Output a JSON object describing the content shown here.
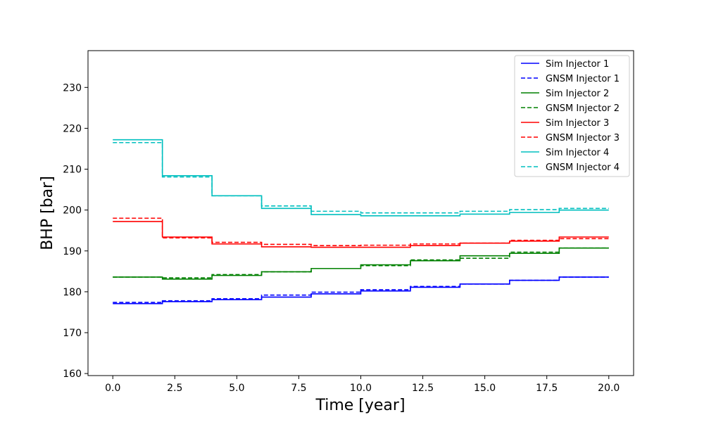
{
  "chart_data": {
    "type": "line",
    "title": "",
    "xlabel": "Time [year]",
    "ylabel": "BHP [bar]",
    "xlim": [
      -1.0,
      21.0
    ],
    "ylim": [
      159.5,
      239.0
    ],
    "xticks": [
      0.0,
      2.5,
      5.0,
      7.5,
      10.0,
      12.5,
      15.0,
      17.5,
      20.0
    ],
    "xtick_labels": [
      "0.0",
      "2.5",
      "5.0",
      "7.5",
      "10.0",
      "12.5",
      "15.0",
      "17.5",
      "20.0"
    ],
    "yticks": [
      160,
      170,
      180,
      190,
      200,
      210,
      220,
      230
    ],
    "ytick_labels": [
      "160",
      "170",
      "180",
      "190",
      "200",
      "210",
      "220",
      "230"
    ],
    "grid": false,
    "legend_position": "top-right",
    "step": "post",
    "x": [
      0,
      2,
      4,
      6,
      8,
      10,
      12,
      14,
      16,
      18,
      20
    ],
    "series": [
      {
        "name": "Sim Injector 1",
        "color": "#0000ff",
        "dash": "solid",
        "values": [
          177.1,
          177.6,
          178.1,
          178.7,
          179.5,
          180.2,
          181.1,
          181.9,
          182.8,
          183.6,
          183.6
        ]
      },
      {
        "name": "GNSM Injector 1",
        "color": "#0000ff",
        "dash": "dashed",
        "values": [
          177.4,
          177.8,
          178.3,
          179.2,
          179.9,
          180.5,
          181.3,
          181.9,
          182.8,
          183.6,
          183.6
        ]
      },
      {
        "name": "Sim Injector 2",
        "color": "#008000",
        "dash": "solid",
        "values": [
          183.6,
          183.1,
          184.0,
          184.9,
          185.7,
          186.6,
          187.6,
          188.8,
          189.4,
          190.7,
          190.7
        ]
      },
      {
        "name": "GNSM Injector 2",
        "color": "#008000",
        "dash": "dashed",
        "values": [
          183.6,
          183.4,
          184.2,
          184.9,
          185.7,
          186.4,
          187.8,
          188.2,
          189.7,
          190.7,
          190.7
        ]
      },
      {
        "name": "Sim Injector 3",
        "color": "#ff0000",
        "dash": "solid",
        "values": [
          197.2,
          193.4,
          191.7,
          191.0,
          190.9,
          190.9,
          191.3,
          191.9,
          192.4,
          193.4,
          193.4
        ]
      },
      {
        "name": "GNSM Injector 3",
        "color": "#ff0000",
        "dash": "dashed",
        "values": [
          198.0,
          193.2,
          192.1,
          191.6,
          191.3,
          191.4,
          191.7,
          191.9,
          192.6,
          193.0,
          193.0
        ]
      },
      {
        "name": "Sim Injector 4",
        "color": "#00bfbf",
        "dash": "solid",
        "values": [
          217.2,
          208.4,
          203.5,
          200.4,
          198.9,
          198.6,
          198.6,
          199.0,
          199.4,
          200.0,
          200.0
        ]
      },
      {
        "name": "GNSM Injector 4",
        "color": "#00bfbf",
        "dash": "dashed",
        "values": [
          216.5,
          208.1,
          203.5,
          201.0,
          199.7,
          199.3,
          199.3,
          199.7,
          200.1,
          200.4,
          200.4
        ]
      }
    ]
  }
}
